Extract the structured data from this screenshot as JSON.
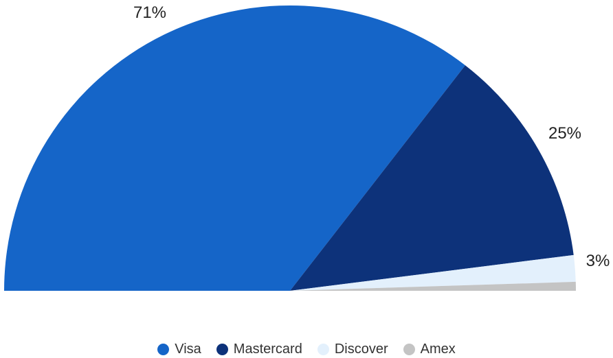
{
  "chart_data": {
    "type": "pie",
    "subtype": "semi-donut",
    "categories": [
      "Visa",
      "Mastercard",
      "Discover",
      "Amex"
    ],
    "values": [
      71,
      25,
      3,
      1
    ],
    "labels": [
      "71%",
      "25%",
      "3%",
      ""
    ],
    "colors": [
      "#1565C8",
      "#0D327A",
      "#E3F0FC",
      "#C4C4C4"
    ],
    "legend": "bottom"
  }
}
